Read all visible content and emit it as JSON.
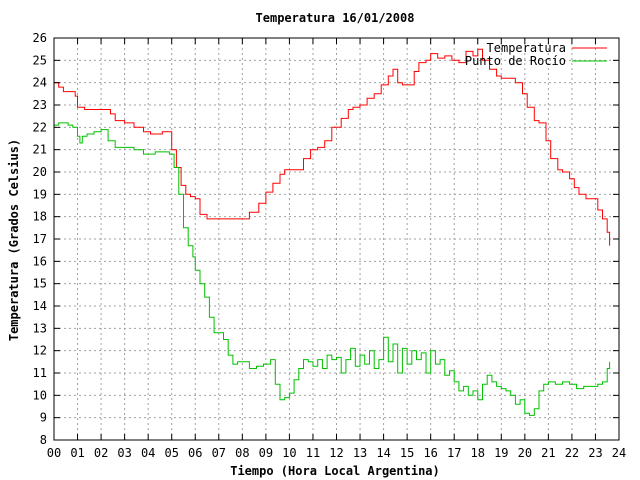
{
  "chart_data": {
    "type": "line",
    "title": "Temperatura 16/01/2008",
    "xlabel": "Tiempo (Hora Local Argentina)",
    "ylabel": "Temperatura (Grados Celsius)",
    "xlim": [
      0,
      24
    ],
    "ylim": [
      8,
      26
    ],
    "x_ticks": [
      "00",
      "01",
      "02",
      "03",
      "04",
      "05",
      "06",
      "07",
      "08",
      "09",
      "10",
      "11",
      "12",
      "13",
      "14",
      "15",
      "16",
      "17",
      "18",
      "19",
      "20",
      "21",
      "22",
      "23",
      "24"
    ],
    "y_ticks": [
      8,
      9,
      10,
      11,
      12,
      13,
      14,
      15,
      16,
      17,
      18,
      19,
      20,
      21,
      22,
      23,
      24,
      25,
      26
    ],
    "grid": true,
    "legend_position": "top-right",
    "series": [
      {
        "name": "Temperatura",
        "color": "#ff0000",
        "x": [
          0,
          0.2,
          0.4,
          0.6,
          0.9,
          1.0,
          1.3,
          1.6,
          2.0,
          2.4,
          2.6,
          3.0,
          3.4,
          3.8,
          4.1,
          4.3,
          4.6,
          4.9,
          5.0,
          5.2,
          5.4,
          5.6,
          5.8,
          6.0,
          6.2,
          6.5,
          7.0,
          7.5,
          8.0,
          8.3,
          8.7,
          9.0,
          9.3,
          9.6,
          9.8,
          10.2,
          10.6,
          10.9,
          11.2,
          11.5,
          11.8,
          12.2,
          12.5,
          12.7,
          13.0,
          13.3,
          13.6,
          13.9,
          14.2,
          14.4,
          14.6,
          14.8,
          15.0,
          15.3,
          15.5,
          15.8,
          16.0,
          16.3,
          16.6,
          16.9,
          17.2,
          17.5,
          17.8,
          18.0,
          18.2,
          18.5,
          18.8,
          19.0,
          19.3,
          19.6,
          19.9,
          20.1,
          20.4,
          20.6,
          20.9,
          21.1,
          21.4,
          21.6,
          21.9,
          22.1,
          22.3,
          22.6,
          22.9,
          23.1,
          23.3,
          23.5,
          23.6
        ],
        "values": [
          24.0,
          23.8,
          23.6,
          23.6,
          23.4,
          22.9,
          22.8,
          22.8,
          22.8,
          22.6,
          22.3,
          22.2,
          22.0,
          21.8,
          21.7,
          21.7,
          21.8,
          21.8,
          21.0,
          20.2,
          19.4,
          19.0,
          18.9,
          18.8,
          18.1,
          17.9,
          17.9,
          17.9,
          17.9,
          18.2,
          18.6,
          19.1,
          19.5,
          19.9,
          20.1,
          20.1,
          20.6,
          21.0,
          21.1,
          21.4,
          22.0,
          22.4,
          22.8,
          22.9,
          23.0,
          23.3,
          23.5,
          23.9,
          24.3,
          24.6,
          24.0,
          23.9,
          23.9,
          24.5,
          24.9,
          25.0,
          25.3,
          25.1,
          25.2,
          25.0,
          24.9,
          25.4,
          25.2,
          25.5,
          25.0,
          24.6,
          24.3,
          24.2,
          24.2,
          24.0,
          23.5,
          22.9,
          22.3,
          22.2,
          21.4,
          20.6,
          20.1,
          20.0,
          19.7,
          19.3,
          19.0,
          18.8,
          18.8,
          18.3,
          17.9,
          17.3,
          16.7
        ]
      },
      {
        "name": "Punto de Rocío",
        "color": "#00c000",
        "x": [
          0,
          0.2,
          0.4,
          0.6,
          0.8,
          1.0,
          1.1,
          1.2,
          1.4,
          1.7,
          2.0,
          2.3,
          2.6,
          3.0,
          3.4,
          3.8,
          4.0,
          4.3,
          4.6,
          4.9,
          5.1,
          5.3,
          5.5,
          5.7,
          5.9,
          6.0,
          6.2,
          6.4,
          6.6,
          6.8,
          7.0,
          7.2,
          7.4,
          7.6,
          7.8,
          8.0,
          8.3,
          8.6,
          8.9,
          9.2,
          9.4,
          9.6,
          9.8,
          10.0,
          10.2,
          10.4,
          10.6,
          10.8,
          11.0,
          11.2,
          11.4,
          11.6,
          11.8,
          12.0,
          12.2,
          12.4,
          12.6,
          12.8,
          13.0,
          13.2,
          13.4,
          13.6,
          13.8,
          14.0,
          14.2,
          14.4,
          14.6,
          14.8,
          15.0,
          15.2,
          15.4,
          15.6,
          15.8,
          16.0,
          16.2,
          16.4,
          16.6,
          16.8,
          17.0,
          17.2,
          17.4,
          17.6,
          17.8,
          18.0,
          18.2,
          18.4,
          18.6,
          18.8,
          19.0,
          19.2,
          19.4,
          19.6,
          19.8,
          20.0,
          20.2,
          20.4,
          20.6,
          20.8,
          21.0,
          21.3,
          21.6,
          21.9,
          22.2,
          22.5,
          22.8,
          23.1,
          23.3,
          23.5,
          23.6
        ],
        "values": [
          22.1,
          22.2,
          22.2,
          22.1,
          22.0,
          21.6,
          21.3,
          21.6,
          21.7,
          21.8,
          21.9,
          21.4,
          21.1,
          21.1,
          21.0,
          20.8,
          20.8,
          20.9,
          20.9,
          20.8,
          20.2,
          19.0,
          17.5,
          16.7,
          16.2,
          15.6,
          15.0,
          14.4,
          13.5,
          12.8,
          12.8,
          12.5,
          11.8,
          11.4,
          11.5,
          11.5,
          11.2,
          11.3,
          11.4,
          11.6,
          10.5,
          9.8,
          9.9,
          10.1,
          10.7,
          11.2,
          11.6,
          11.5,
          11.3,
          11.6,
          11.2,
          11.8,
          11.6,
          11.7,
          11.0,
          11.6,
          12.1,
          11.3,
          11.8,
          11.4,
          12.0,
          11.2,
          11.6,
          12.6,
          11.5,
          12.3,
          11.0,
          12.1,
          11.4,
          12.0,
          11.6,
          11.9,
          11.0,
          12.0,
          11.4,
          11.6,
          10.9,
          11.1,
          10.6,
          10.2,
          10.4,
          10.0,
          10.2,
          9.8,
          10.5,
          10.9,
          10.6,
          10.4,
          10.3,
          10.2,
          10.0,
          9.6,
          9.8,
          9.2,
          9.1,
          9.4,
          10.2,
          10.5,
          10.6,
          10.5,
          10.6,
          10.5,
          10.3,
          10.4,
          10.4,
          10.5,
          10.6,
          11.2,
          11.5
        ]
      }
    ]
  }
}
